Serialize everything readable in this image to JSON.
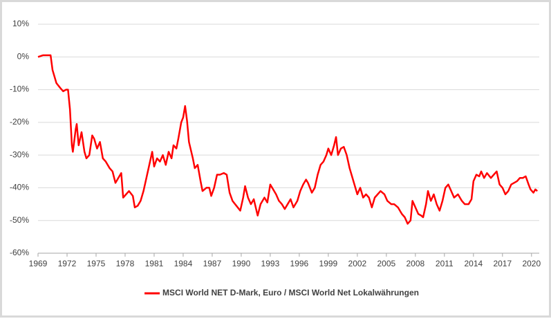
{
  "chart_data": {
    "type": "line",
    "x": [
      1969.0,
      1969.5,
      1970.3,
      1970.5,
      1970.9,
      1971.3,
      1971.6,
      1971.9,
      1972.1,
      1972.3,
      1972.5,
      1972.6,
      1972.9,
      1973.0,
      1973.2,
      1973.5,
      1973.8,
      1974.0,
      1974.3,
      1974.6,
      1974.8,
      1975.1,
      1975.4,
      1975.7,
      1976.0,
      1976.4,
      1976.7,
      1977.0,
      1977.3,
      1977.6,
      1977.8,
      1978.1,
      1978.4,
      1978.8,
      1979.0,
      1979.3,
      1979.6,
      1979.9,
      1980.2,
      1980.5,
      1980.8,
      1981.0,
      1981.3,
      1981.6,
      1981.9,
      1982.2,
      1982.5,
      1982.8,
      1983.0,
      1983.3,
      1983.5,
      1983.8,
      1984.0,
      1984.2,
      1984.4,
      1984.6,
      1985.0,
      1985.2,
      1985.5,
      1985.8,
      1986.0,
      1986.4,
      1986.7,
      1986.9,
      1987.2,
      1987.5,
      1987.8,
      1988.2,
      1988.5,
      1988.8,
      1989.1,
      1989.5,
      1989.9,
      1990.2,
      1990.4,
      1990.7,
      1991.0,
      1991.3,
      1991.7,
      1992.0,
      1992.4,
      1992.7,
      1993.0,
      1993.3,
      1993.6,
      1993.9,
      1994.2,
      1994.5,
      1994.8,
      1995.1,
      1995.4,
      1995.8,
      1996.1,
      1996.4,
      1996.7,
      1996.9,
      1997.3,
      1997.6,
      1997.9,
      1998.2,
      1998.5,
      1998.8,
      1999.0,
      1999.3,
      1999.6,
      1999.8,
      2000.0,
      2000.3,
      2000.6,
      2000.9,
      2001.2,
      2001.5,
      2001.8,
      2002.0,
      2002.3,
      2002.6,
      2002.9,
      2003.2,
      2003.5,
      2003.8,
      2004.1,
      2004.4,
      2004.8,
      2005.1,
      2005.5,
      2005.8,
      2006.2,
      2006.6,
      2006.9,
      2007.2,
      2007.5,
      2007.7,
      2008.0,
      2008.3,
      2008.6,
      2008.8,
      2009.1,
      2009.3,
      2009.6,
      2009.9,
      2010.2,
      2010.5,
      2010.8,
      2011.1,
      2011.4,
      2011.7,
      2012.0,
      2012.4,
      2012.8,
      2013.1,
      2013.5,
      2013.8,
      2014.0,
      2014.3,
      2014.6,
      2014.8,
      2015.1,
      2015.4,
      2015.8,
      2016.1,
      2016.4,
      2016.7,
      2017.0,
      2017.3,
      2017.6,
      2017.9,
      2018.2,
      2018.5,
      2018.8,
      2019.1,
      2019.4,
      2019.7,
      2019.9,
      2020.2,
      2020.4,
      2020.6
    ],
    "series": [
      {
        "name": "MSCI World NET D-Mark, Euro / MSCI World Net Lokalwährungen",
        "color": "#ff0000",
        "values": [
          0,
          0.5,
          0.5,
          -4,
          -8,
          -9.5,
          -10.5,
          -10,
          -10,
          -16,
          -27,
          -29,
          -22,
          -20.5,
          -27,
          -23,
          -29,
          -31,
          -30,
          -24,
          -25,
          -28,
          -26,
          -31,
          -32,
          -34,
          -35,
          -38.5,
          -37,
          -35.5,
          -43,
          -42,
          -41,
          -42.5,
          -46,
          -45.5,
          -44,
          -41,
          -37,
          -33,
          -29,
          -33.5,
          -31,
          -32,
          -30,
          -33,
          -29,
          -31,
          -27,
          -28,
          -25,
          -20,
          -18.5,
          -15,
          -19.5,
          -26,
          -31,
          -34,
          -33,
          -38,
          -41,
          -40,
          -40,
          -42.5,
          -40,
          -36,
          -36,
          -35.5,
          -36,
          -41.5,
          -44,
          -45.5,
          -47,
          -43,
          -39.5,
          -43,
          -45,
          -43.5,
          -48.5,
          -45,
          -43,
          -44.5,
          -39,
          -40.5,
          -42,
          -44,
          -45,
          -46.5,
          -45,
          -43.5,
          -46,
          -44,
          -41,
          -39,
          -37.5,
          -38.5,
          -41.5,
          -40,
          -36,
          -33,
          -32,
          -30,
          -28,
          -30,
          -27,
          -24.5,
          -30,
          -28,
          -27.5,
          -30,
          -34,
          -37,
          -40,
          -42,
          -40,
          -43,
          -42,
          -43,
          -46,
          -43,
          -42,
          -41,
          -42,
          -44,
          -45,
          -45,
          -46,
          -48,
          -49,
          -51,
          -50,
          -44,
          -46,
          -48,
          -48.5,
          -49,
          -45,
          -41,
          -44,
          -42,
          -45,
          -47,
          -44,
          -40,
          -39,
          -41,
          -43,
          -42,
          -44,
          -45,
          -45,
          -43.5,
          -38,
          -36,
          -36.5,
          -35,
          -37,
          -35.5,
          -37,
          -36,
          -35,
          -39,
          -40,
          -42,
          -41,
          -39,
          -38.5,
          -38,
          -37,
          -37,
          -36.5,
          -39,
          -40.5,
          -41.5,
          -40.5,
          -41
        ]
      }
    ],
    "xlim": [
      1969,
      2020.8
    ],
    "xticks": [
      1969,
      1972,
      1975,
      1978,
      1981,
      1984,
      1987,
      1990,
      1993,
      1996,
      1999,
      2002,
      2005,
      2008,
      2011,
      2014,
      2017,
      2020
    ],
    "ylim": [
      -60,
      10
    ],
    "yticks": [
      {
        "value": 10,
        "label": "10%"
      },
      {
        "value": 0,
        "label": "0%"
      },
      {
        "value": -10,
        "label": "-10%"
      },
      {
        "value": -20,
        "label": "-20%"
      },
      {
        "value": -30,
        "label": "-30%"
      },
      {
        "value": -40,
        "label": "-40%"
      },
      {
        "value": -50,
        "label": "-50%"
      },
      {
        "value": -60,
        "label": "-60%"
      }
    ],
    "grid": true,
    "legend": "bottom"
  }
}
